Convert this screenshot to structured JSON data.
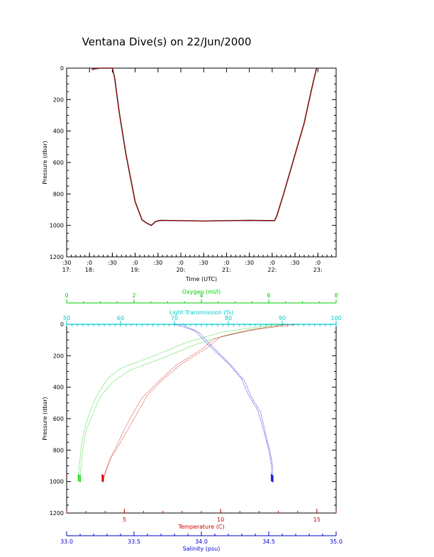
{
  "title": "Ventana Dive(s) on 22/Jun/2000",
  "chart_data": [
    {
      "type": "line",
      "title": "Ventana Dive(s) on 22/Jun/2000",
      "xlabel": "Time (UTC)",
      "ylabel": "Pressure (dbar)",
      "xlim": [
        17.5,
        23.4
      ],
      "ylim": [
        1200,
        0
      ],
      "x_ticks": [
        {
          "top": ":30",
          "bottom": "17:",
          "x": 17.5
        },
        {
          "top": ":0",
          "bottom": "18:",
          "x": 18.0
        },
        {
          "top": ":30",
          "bottom": "",
          "x": 18.5
        },
        {
          "top": ":0",
          "bottom": "19:",
          "x": 19.0
        },
        {
          "top": ":30",
          "bottom": "",
          "x": 19.5
        },
        {
          "top": ":0",
          "bottom": "20:",
          "x": 20.0
        },
        {
          "top": ":30",
          "bottom": "",
          "x": 20.5
        },
        {
          "top": ":0",
          "bottom": "21:",
          "x": 21.0
        },
        {
          "top": ":30",
          "bottom": "",
          "x": 21.5
        },
        {
          "top": ":0",
          "bottom": "22:",
          "x": 22.0
        },
        {
          "top": ":30",
          "bottom": "",
          "x": 22.5
        },
        {
          "top": ":0",
          "bottom": "23:",
          "x": 23.0
        }
      ],
      "y_ticks": [
        0,
        200,
        400,
        600,
        800,
        1000,
        1200
      ],
      "series": [
        {
          "color": "#cc0000",
          "points": [
            [
              18.05,
              10
            ],
            [
              18.1,
              5
            ],
            [
              18.25,
              0
            ],
            [
              18.5,
              0
            ],
            [
              18.55,
              60
            ],
            [
              18.65,
              280
            ],
            [
              18.8,
              550
            ],
            [
              19.0,
              850
            ],
            [
              19.15,
              965
            ],
            [
              19.25,
              985
            ],
            [
              19.35,
              1000
            ],
            [
              19.45,
              975
            ],
            [
              19.55,
              968
            ],
            [
              20.0,
              970
            ],
            [
              20.5,
              972
            ],
            [
              21.0,
              970
            ],
            [
              21.5,
              968
            ],
            [
              22.05,
              970
            ],
            [
              22.1,
              940
            ],
            [
              22.25,
              800
            ],
            [
              22.45,
              600
            ],
            [
              22.7,
              350
            ],
            [
              22.85,
              150
            ],
            [
              22.97,
              0
            ]
          ]
        }
      ]
    },
    {
      "type": "scatter",
      "ylabel": "Pressure (dbar)",
      "ylim": [
        1200,
        0
      ],
      "y_ticks": [
        0,
        200,
        400,
        600,
        800,
        1000,
        1200
      ],
      "axes": {
        "oxygen": {
          "label": "Oxygen (ml/l)",
          "range": [
            0,
            8
          ],
          "ticks": [
            0,
            2,
            4,
            6,
            8
          ],
          "color": "#00cc00"
        },
        "transmission": {
          "label": "Light Transmission (%)",
          "range": [
            50,
            100
          ],
          "ticks": [
            50,
            60,
            70,
            80,
            90,
            100
          ],
          "color": "#00cccc"
        },
        "temperature": {
          "label": "Temperature (C)",
          "range": [
            2,
            16
          ],
          "ticks": [
            5,
            10,
            15
          ],
          "color": "#cc0000"
        },
        "salinity": {
          "label": "Salinity (psu)",
          "range": [
            33.0,
            35.0
          ],
          "ticks": [
            "33.0",
            "33.5",
            "34.0",
            "34.5",
            "35.0"
          ],
          "color": "#0000cc"
        }
      },
      "series": [
        {
          "name": "oxygen",
          "color": "#00cc00",
          "points": [
            [
              6.2,
              0
            ],
            [
              5.6,
              20
            ],
            [
              4.6,
              50
            ],
            [
              3.5,
              120
            ],
            [
              2.6,
              200
            ],
            [
              1.6,
              280
            ],
            [
              1.2,
              350
            ],
            [
              0.9,
              450
            ],
            [
              0.7,
              550
            ],
            [
              0.55,
              650
            ],
            [
              0.45,
              750
            ],
            [
              0.4,
              850
            ],
            [
              0.35,
              950
            ],
            [
              0.35,
              990
            ]
          ]
        },
        {
          "name": "oxygen-return",
          "color": "#00cc00",
          "points": [
            [
              6.5,
              0
            ],
            [
              5.9,
              20
            ],
            [
              4.9,
              60
            ],
            [
              3.8,
              130
            ],
            [
              2.9,
              210
            ],
            [
              1.9,
              290
            ],
            [
              1.4,
              360
            ],
            [
              1.0,
              460
            ],
            [
              0.8,
              560
            ],
            [
              0.6,
              660
            ],
            [
              0.5,
              760
            ],
            [
              0.45,
              860
            ],
            [
              0.4,
              960
            ],
            [
              0.4,
              995
            ]
          ]
        },
        {
          "name": "temperature",
          "color": "#cc0000",
          "points": [
            [
              14.0,
              0
            ],
            [
              12.0,
              30
            ],
            [
              10.0,
              80
            ],
            [
              9.3,
              150
            ],
            [
              8.0,
              250
            ],
            [
              7.0,
              350
            ],
            [
              6.2,
              450
            ],
            [
              5.5,
              600
            ],
            [
              4.8,
              750
            ],
            [
              4.3,
              850
            ],
            [
              4.0,
              950
            ],
            [
              3.9,
              995
            ]
          ]
        },
        {
          "name": "temperature-return",
          "color": "#cc0000",
          "points": [
            [
              13.5,
              0
            ],
            [
              11.5,
              35
            ],
            [
              9.7,
              90
            ],
            [
              9.0,
              160
            ],
            [
              7.7,
              260
            ],
            [
              6.8,
              360
            ],
            [
              5.9,
              470
            ],
            [
              5.2,
              620
            ],
            [
              4.6,
              770
            ],
            [
              4.2,
              870
            ],
            [
              3.95,
              960
            ],
            [
              3.85,
              990
            ]
          ]
        },
        {
          "name": "salinity",
          "color": "#0000cc",
          "points": [
            [
              33.8,
              0
            ],
            [
              33.95,
              40
            ],
            [
              34.05,
              130
            ],
            [
              34.2,
              250
            ],
            [
              34.3,
              350
            ],
            [
              34.35,
              450
            ],
            [
              34.42,
              550
            ],
            [
              34.47,
              700
            ],
            [
              34.5,
              800
            ],
            [
              34.52,
              900
            ],
            [
              34.52,
              990
            ]
          ]
        },
        {
          "name": "salinity-return",
          "color": "#0000cc",
          "points": [
            [
              33.85,
              0
            ],
            [
              33.98,
              50
            ],
            [
              34.08,
              140
            ],
            [
              34.22,
              260
            ],
            [
              34.32,
              360
            ],
            [
              34.37,
              460
            ],
            [
              34.44,
              560
            ],
            [
              34.48,
              710
            ],
            [
              34.51,
              810
            ],
            [
              34.53,
              910
            ],
            [
              34.53,
              995
            ]
          ]
        }
      ]
    }
  ]
}
